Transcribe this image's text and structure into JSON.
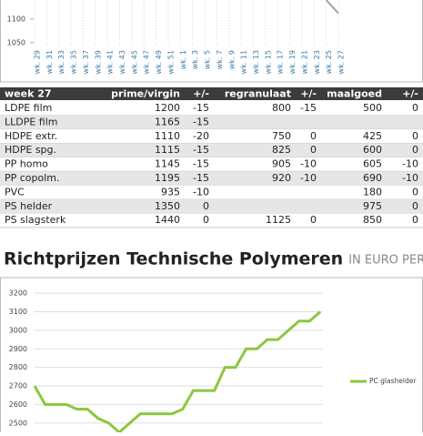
{
  "chart_data": [
    {
      "type": "line",
      "categories": [
        "wk. 29",
        "wk. 31",
        "wk. 33",
        "wk. 35",
        "wk. 37",
        "wk. 39",
        "wk. 41",
        "wk. 43",
        "wk. 45",
        "wk. 47",
        "wk. 49",
        "wk. 51",
        "wk. 1",
        "wk. 3",
        "wk. 5",
        "wk. 7",
        "wk. 9",
        "wk. 11",
        "wk. 13",
        "wk. 15",
        "wk. 17",
        "wk. 19",
        "wk. 21",
        "wk. 23",
        "wk. 25",
        "wk. 27"
      ],
      "series": [
        {
          "color": "#9aa3a8",
          "values": [
            null,
            null,
            null,
            null,
            null,
            null,
            null,
            null,
            null,
            null,
            null,
            null,
            null,
            null,
            null,
            null,
            null,
            null,
            null,
            null,
            null,
            null,
            null,
            null,
            1140,
            1112
          ]
        }
      ],
      "ylim": [
        1040,
        1144
      ],
      "yticks": [
        1050,
        1100
      ]
    },
    {
      "type": "line",
      "title": "Richtprijzen Technische Polymeren",
      "subtitle": "IN EURO PER TON",
      "series": [
        {
          "name": "PC glashelder",
          "color": "#8dc63f",
          "values": [
            2700,
            2600,
            2600,
            2600,
            2575,
            2575,
            2525,
            2500,
            2450,
            2500,
            2550,
            2550,
            2550,
            2550,
            2575,
            2675,
            2675,
            2675,
            2800,
            2800,
            2900,
            2900,
            2950,
            2950,
            3000,
            3050,
            3050,
            3100
          ]
        }
      ],
      "ylim": [
        2440,
        3250
      ],
      "yticks": [
        2500,
        2600,
        2700,
        2800,
        2900,
        3000,
        3100,
        3200
      ],
      "grid": true
    }
  ],
  "table": {
    "header": [
      "week 27",
      "prime/virgin",
      "+/-",
      "regranulaat",
      "+/-",
      "maalgoed",
      "+/-"
    ],
    "rows": [
      [
        "LDPE film",
        1200,
        -15,
        800,
        -15,
        500,
        0
      ],
      [
        "LLDPE film",
        1165,
        -15,
        null,
        null,
        null,
        null
      ],
      [
        "HDPE extr.",
        1110,
        -20,
        750,
        0,
        425,
        0
      ],
      [
        "HDPE spg.",
        1115,
        -15,
        825,
        0,
        600,
        0
      ],
      [
        "PP homo",
        1145,
        -15,
        905,
        -10,
        605,
        -10
      ],
      [
        "PP copolm.",
        1195,
        -15,
        920,
        -10,
        690,
        -10
      ],
      [
        "PVC",
        935,
        -10,
        null,
        null,
        180,
        0
      ],
      [
        "PS helder",
        1350,
        0,
        null,
        null,
        975,
        0
      ],
      [
        "PS slagsterk",
        1440,
        0,
        1125,
        0,
        850,
        0
      ]
    ]
  }
}
